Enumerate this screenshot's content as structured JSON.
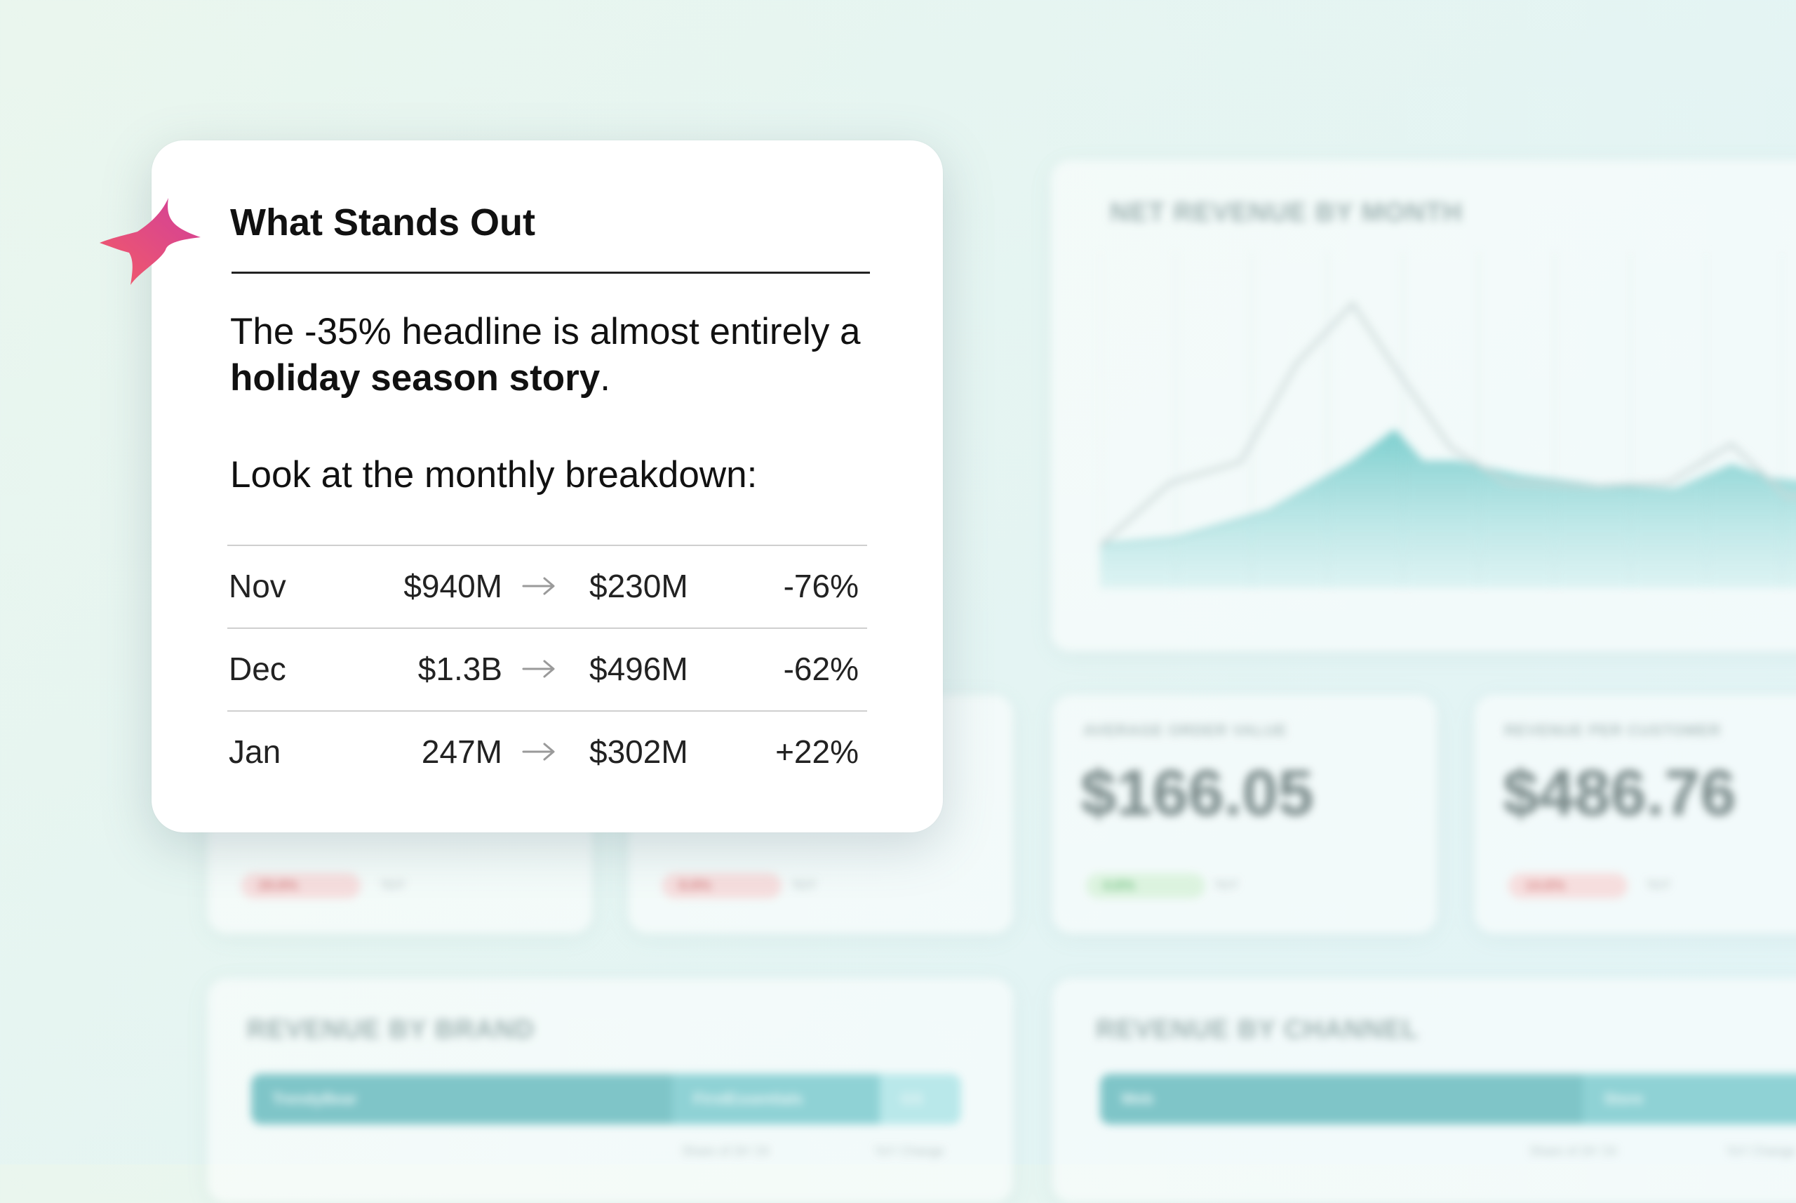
{
  "card": {
    "title": "What Stands Out",
    "headline_pre": "The -35% headline is almost entirely a ",
    "headline_bold": "holiday season story",
    "headline_post": ".",
    "subhead": "Look at the monthly breakdown:",
    "rows": [
      {
        "month": "Nov",
        "from": "$940M",
        "to": "$230M",
        "change": "-76%"
      },
      {
        "month": "Dec",
        "from": "$1.3B",
        "to": "$496M",
        "change": "-62%"
      },
      {
        "month": "Jan",
        "from": "247M",
        "to": "$302M",
        "change": "+22%"
      }
    ],
    "icon": "sparkle-icon",
    "accent_colors": [
      "#f0566a",
      "#d9409a"
    ]
  },
  "background": {
    "revenue_chart_title": "NET REVENUE BY MONTH",
    "kpis": [
      {
        "label": "AVERAGE ORDER VALUE",
        "value": "$166.05",
        "delta": "4.6%",
        "delta_dir": "up",
        "note": "YoY"
      },
      {
        "label": "REVENUE PER CUSTOMER",
        "value": "$486.76",
        "delta": "14.6%",
        "delta_dir": "down",
        "note": "YoY"
      }
    ],
    "left_pills": [
      {
        "delta": "29.8%",
        "note": "YoY"
      },
      {
        "delta": "8.8%",
        "note": "YoY"
      }
    ],
    "brand": {
      "title": "REVENUE BY BRAND",
      "segments": [
        "TrendyBear",
        "FirstEssentials",
        "GS"
      ],
      "foot": [
        "Share of 2H '24",
        "YoY Change"
      ]
    },
    "channel": {
      "title": "REVENUE BY CHANNEL",
      "segments": [
        "Web",
        "Store"
      ],
      "foot": [
        "Share of 2H '24",
        "YoY Change"
      ]
    },
    "colors": {
      "teal": "#6bbfc2",
      "teal_light": "#a9e0e3"
    }
  }
}
